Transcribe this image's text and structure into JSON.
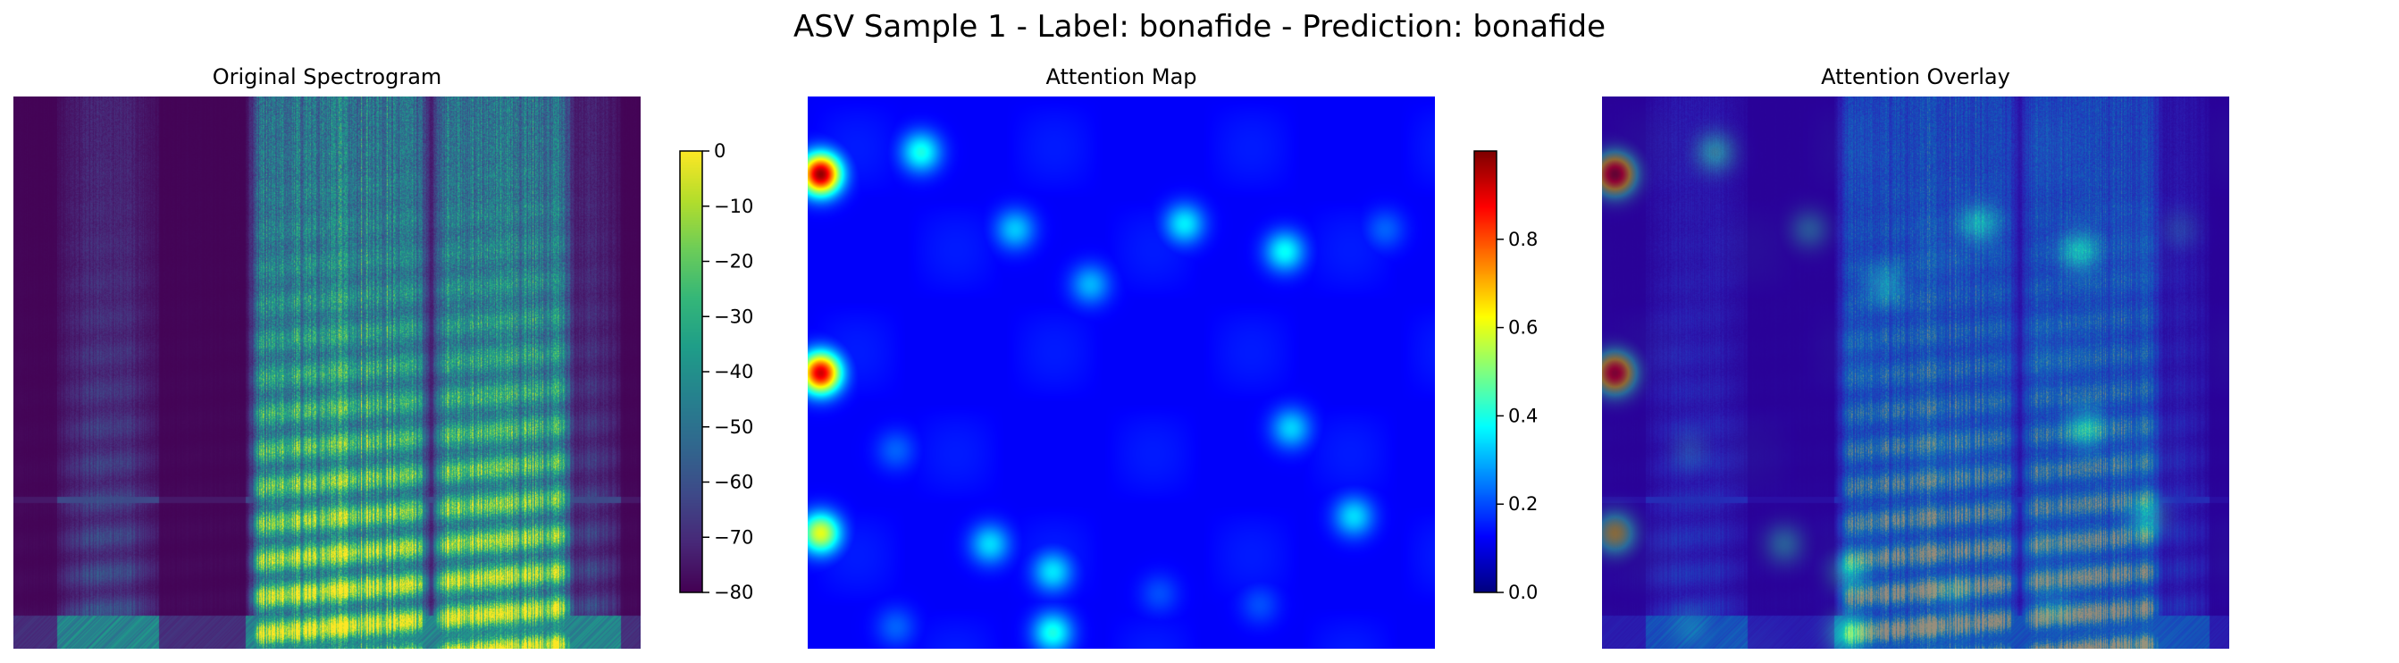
{
  "title": "ASV Sample 1 - Label: bonafide - Prediction: bonafide",
  "chart_data": [
    {
      "type": "heatmap",
      "title": "Original Spectrogram",
      "colormap": "viridis",
      "colorbar": {
        "min": -80,
        "max": 0,
        "ticks": [
          0,
          -10,
          -20,
          -30,
          -40,
          -50,
          -60,
          -70,
          -80
        ],
        "tick_labels": [
          "0",
          "−10",
          "−20",
          "−30",
          "−40",
          "−50",
          "−60",
          "−70",
          "−80"
        ]
      },
      "axes": "off",
      "background_value_db": -80,
      "speech_segments_fraction": [
        [
          0.4,
          0.57
        ],
        [
          0.57,
          0.64
        ],
        [
          0.69,
          0.87
        ]
      ]
    },
    {
      "type": "heatmap",
      "title": "Attention Map",
      "colormap": "jet",
      "colorbar": {
        "min": 0.0,
        "max": 1.0,
        "ticks": [
          0.0,
          0.2,
          0.4,
          0.6,
          0.8
        ],
        "tick_labels": [
          "0.0",
          "0.2",
          "0.4",
          "0.6",
          "0.8"
        ]
      },
      "axes": "off",
      "background_value": 0.12,
      "hotspots": [
        {
          "x": 0.02,
          "y": 0.14,
          "value": 0.98
        },
        {
          "x": 0.02,
          "y": 0.5,
          "value": 0.92
        },
        {
          "x": 0.02,
          "y": 0.79,
          "value": 0.6
        },
        {
          "x": 0.18,
          "y": 0.1,
          "value": 0.4
        },
        {
          "x": 0.33,
          "y": 0.24,
          "value": 0.32
        },
        {
          "x": 0.45,
          "y": 0.34,
          "value": 0.3
        },
        {
          "x": 0.6,
          "y": 0.23,
          "value": 0.36
        },
        {
          "x": 0.76,
          "y": 0.28,
          "value": 0.38
        },
        {
          "x": 0.77,
          "y": 0.6,
          "value": 0.33
        },
        {
          "x": 0.87,
          "y": 0.76,
          "value": 0.34
        },
        {
          "x": 0.92,
          "y": 0.24,
          "value": 0.22
        },
        {
          "x": 0.29,
          "y": 0.81,
          "value": 0.34
        },
        {
          "x": 0.39,
          "y": 0.86,
          "value": 0.35
        },
        {
          "x": 0.39,
          "y": 0.97,
          "value": 0.4
        },
        {
          "x": 0.14,
          "y": 0.64,
          "value": 0.22
        },
        {
          "x": 0.56,
          "y": 0.9,
          "value": 0.2
        },
        {
          "x": 0.72,
          "y": 0.92,
          "value": 0.2
        },
        {
          "x": 0.14,
          "y": 0.96,
          "value": 0.22
        }
      ]
    },
    {
      "type": "heatmap",
      "title": "Attention Overlay",
      "description_source": "Original Spectrogram blended with Attention Map",
      "overlay_alpha": 0.4,
      "axes": "off"
    }
  ]
}
